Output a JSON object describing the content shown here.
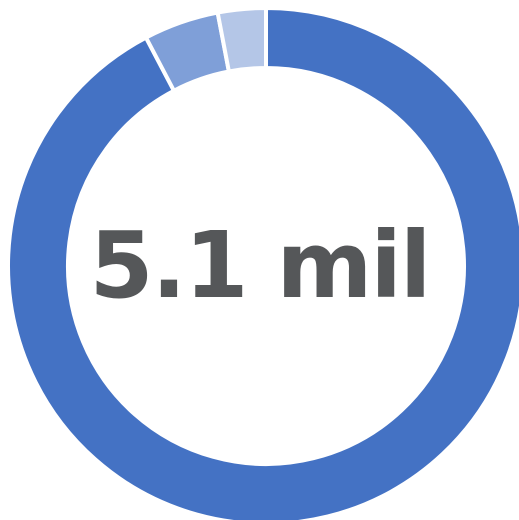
{
  "chart_data": {
    "type": "pie",
    "variant": "donut",
    "center_label": "5.1 mil",
    "slices": [
      {
        "value": 92.3,
        "color": "#4472C4"
      },
      {
        "value": 4.7,
        "color": "#7F9FD8"
      },
      {
        "value": 3.0,
        "color": "#B4C6E7"
      }
    ],
    "separator_color": "#ffffff"
  }
}
